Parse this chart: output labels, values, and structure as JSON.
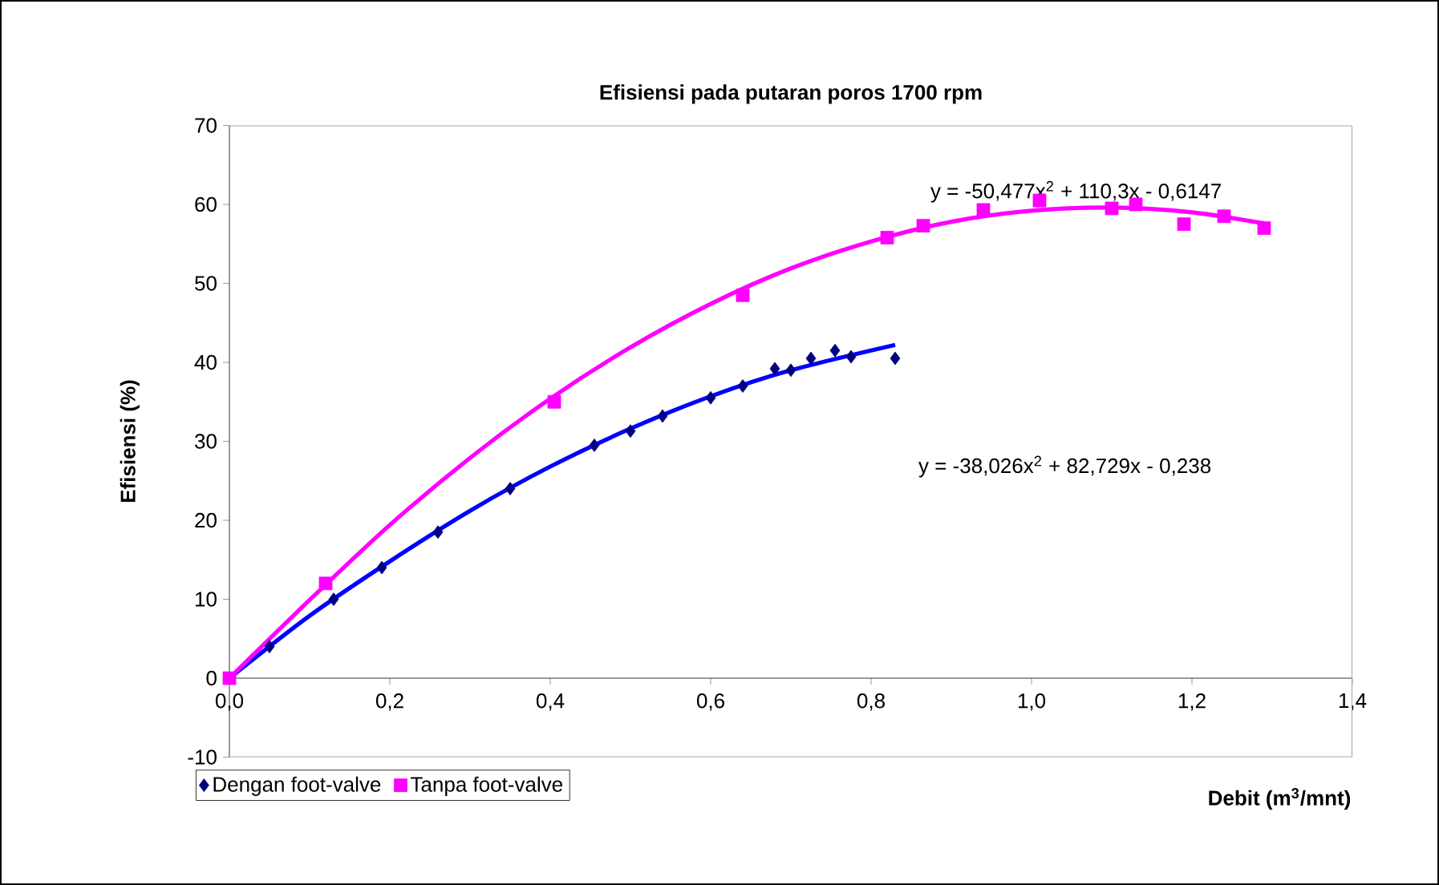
{
  "chart_data": {
    "type": "scatter",
    "title": "Efisiensi pada putaran poros 1700 rpm",
    "xlabel": "Debit (m$^{3}$/mnt)",
    "ylabel": "Efisiensi (%)",
    "xlim": [
      0,
      1.4
    ],
    "ylim": [
      -10,
      70
    ],
    "xticks": [
      {
        "value": 0,
        "label": "0,0"
      },
      {
        "value": 0.2,
        "label": "0,2"
      },
      {
        "value": 0.4,
        "label": "0,4"
      },
      {
        "value": 0.6,
        "label": "0,6"
      },
      {
        "value": 0.8,
        "label": "0,8"
      },
      {
        "value": 1.0,
        "label": "1,0"
      },
      {
        "value": 1.2,
        "label": "1,2"
      },
      {
        "value": 1.4,
        "label": "1,4"
      }
    ],
    "yticks": [
      -10,
      0,
      10,
      20,
      30,
      40,
      50,
      60,
      70
    ],
    "grid": false,
    "legend": "bottom left",
    "annotations": [
      "y = -50,477x$^{2}$ + 110,3x - 0,6147",
      "y = -38,026x$^{2}$ + 82,729x - 0,238"
    ],
    "series": [
      {
        "name": "Dengan foot-valve",
        "marker": "diamond",
        "color": "#000080",
        "x": [
          0.05,
          0.13,
          0.19,
          0.26,
          0.35,
          0.455,
          0.5,
          0.54,
          0.6,
          0.64,
          0.68,
          0.7,
          0.725,
          0.755,
          0.775,
          0.83
        ],
        "values": [
          4,
          10,
          14,
          18.5,
          24,
          29.5,
          31.3,
          33.2,
          35.5,
          37,
          39.2,
          39,
          40.5,
          41.5,
          40.7,
          40.5
        ]
      },
      {
        "name": "Tanpa foot-valve",
        "marker": "square",
        "color": "#ff00ff",
        "x": [
          0,
          0.12,
          0.405,
          0.64,
          0.82,
          0.865,
          0.94,
          1.01,
          1.1,
          1.13,
          1.19,
          1.24,
          1.29
        ],
        "values": [
          0,
          12,
          35,
          48.5,
          55.8,
          57.3,
          59.3,
          60.5,
          59.5,
          60,
          57.5,
          58.5,
          57
        ]
      },
      {
        "type": "line",
        "marker": "none",
        "color": "#0000ff",
        "x": [
          0,
          0.1,
          0.2,
          0.3,
          0.4,
          0.5,
          0.6,
          0.7,
          0.83
        ],
        "values": [
          0,
          7.9,
          14.8,
          21.2,
          26.8,
          31.6,
          35.7,
          39,
          42.2
        ]
      },
      {
        "type": "line",
        "marker": "none",
        "color": "#ff00ff",
        "x": [
          0,
          0.1,
          0.2,
          0.3,
          0.4,
          0.5,
          0.6,
          0.7,
          0.8,
          0.9,
          1.0,
          1.1,
          1.2,
          1.29
        ],
        "values": [
          0,
          9.9,
          19.4,
          27.9,
          35.4,
          41.9,
          47.4,
          51.9,
          55.3,
          57.8,
          59.2,
          59.6,
          59,
          57.6
        ]
      }
    ]
  }
}
